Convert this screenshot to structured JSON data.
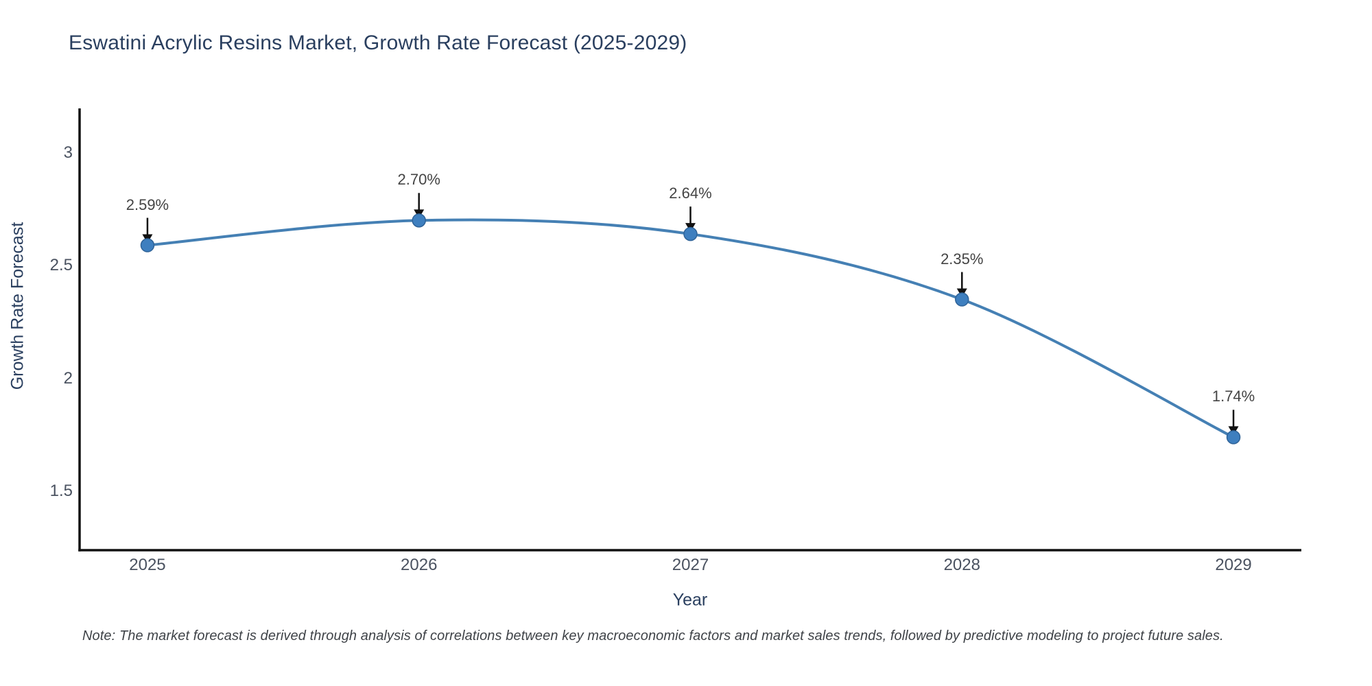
{
  "figure": {
    "note": "Note: The market forecast is derived through analysis of correlations between key macroeconomic factors and market sales trends, followed by predictive modeling to project future sales."
  },
  "chart_data": {
    "type": "line",
    "title": "Eswatini Acrylic Resins Market, Growth Rate Forecast (2025-2029)",
    "xlabel": "Year",
    "ylabel": "Growth Rate Forecast",
    "x": [
      2025,
      2026,
      2027,
      2028,
      2029
    ],
    "series": [
      {
        "name": "Growth Rate Forecast",
        "values": [
          2.59,
          2.7,
          2.64,
          2.35,
          1.74
        ],
        "point_labels": [
          "2.59%",
          "2.70%",
          "2.64%",
          "2.35%",
          "1.74%"
        ]
      }
    ],
    "line_shape": "spline",
    "markers": true,
    "grid": false,
    "legend": "none",
    "xlim": [
      2024.75,
      2029.25
    ],
    "ylim": [
      1.24,
      3.19
    ],
    "xtick_values": [
      2025,
      2026,
      2027,
      2028,
      2029
    ],
    "xtick_labels": [
      "2025",
      "2026",
      "2027",
      "2028",
      "2029"
    ],
    "ytick_values": [
      1.5,
      2,
      2.5,
      3
    ],
    "ytick_labels": [
      "1.5",
      "2",
      "2.5",
      "3"
    ],
    "colors": {
      "line": "#4580b4",
      "marker_fill": "#3e7fbf",
      "marker_edge": "#2f6398",
      "axis_line": "#111111",
      "arrow": "#111111",
      "title_text": "#2a3f5f",
      "axis_title_text": "#2a3f5f",
      "tick_text": "#4a5260",
      "annotation_text": "#444444",
      "note_text": "#3f4348",
      "background": "#ffffff"
    }
  }
}
